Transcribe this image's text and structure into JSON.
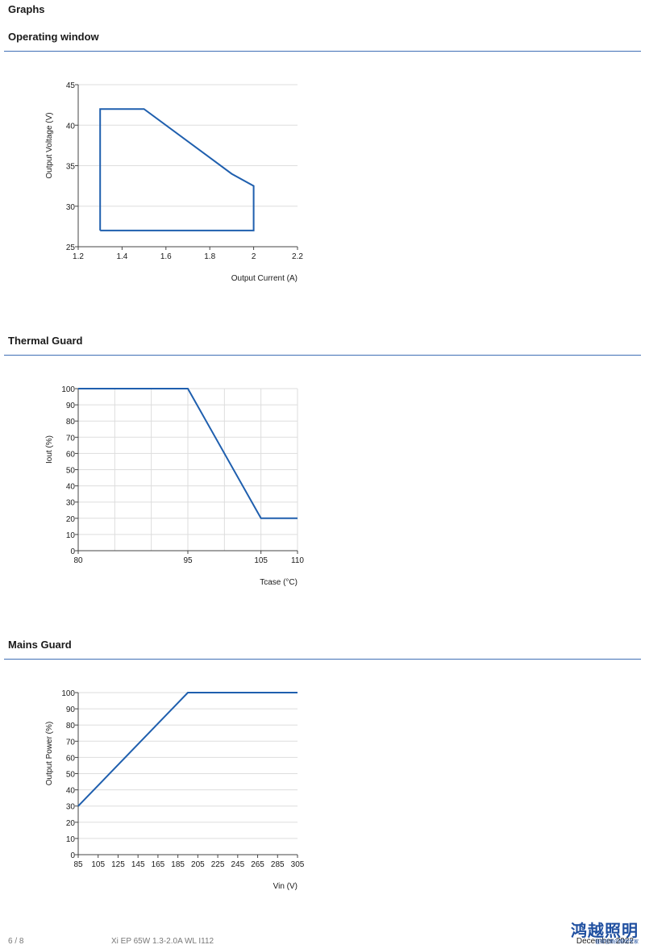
{
  "page": {
    "heading": "Graphs"
  },
  "sections": [
    {
      "title": "Operating window"
    },
    {
      "title": "Thermal Guard"
    },
    {
      "title": "Mains Guard"
    }
  ],
  "charts": [
    {
      "id": "operating-window",
      "type": "line",
      "xlabel": "Output Current (A)",
      "ylabel": "Output Voltage (V)",
      "xlim": [
        1.2,
        2.2
      ],
      "ylim": [
        25,
        45
      ],
      "xticks": [
        1.2,
        1.4,
        1.6,
        1.8,
        2,
        2.2
      ],
      "yticks": [
        25,
        30,
        35,
        40,
        45
      ],
      "grid": "horizontal",
      "series": [
        {
          "points": [
            [
              1.3,
              27
            ],
            [
              1.3,
              42
            ],
            [
              1.5,
              42
            ],
            [
              1.9,
              34
            ],
            [
              2.0,
              32.5
            ],
            [
              2.0,
              27
            ],
            [
              1.3,
              27
            ]
          ]
        }
      ]
    },
    {
      "id": "thermal-guard",
      "type": "line",
      "xlabel": "Tcase (°C)",
      "ylabel": "Iout (%)",
      "xlim": [
        80,
        110
      ],
      "ylim": [
        0,
        100
      ],
      "xticks": [
        80,
        95,
        105,
        110
      ],
      "yticks": [
        0,
        10,
        20,
        30,
        40,
        50,
        60,
        70,
        80,
        90,
        100
      ],
      "grid": "both",
      "vgrid": [
        80,
        85,
        90,
        95,
        100,
        105,
        110
      ],
      "series": [
        {
          "points": [
            [
              80,
              100
            ],
            [
              95,
              100
            ],
            [
              105,
              20
            ],
            [
              110,
              20
            ]
          ]
        }
      ]
    },
    {
      "id": "mains-guard",
      "type": "line",
      "xlabel": "Vin (V)",
      "ylabel": "Output Power (%)",
      "xlim": [
        85,
        305
      ],
      "ylim": [
        0,
        100
      ],
      "xticks": [
        85,
        105,
        125,
        145,
        165,
        185,
        205,
        225,
        245,
        265,
        285,
        305
      ],
      "yticks": [
        0,
        10,
        20,
        30,
        40,
        50,
        60,
        70,
        80,
        90,
        100
      ],
      "grid": "horizontal",
      "series": [
        {
          "points": [
            [
              85,
              30
            ],
            [
              195,
              100
            ],
            [
              305,
              100
            ]
          ]
        }
      ]
    }
  ],
  "chart_data": [
    {
      "type": "line",
      "xlabel": "Output Current (A)",
      "ylabel": "Output Voltage (V)",
      "xlim": [
        1.2,
        2.2
      ],
      "ylim": [
        25,
        45
      ],
      "x": [
        1.3,
        1.3,
        1.5,
        1.9,
        2.0,
        2.0,
        1.3
      ],
      "y": [
        27,
        42,
        42,
        34,
        32.5,
        27,
        27
      ]
    },
    {
      "type": "line",
      "xlabel": "Tcase (°C)",
      "ylabel": "Iout (%)",
      "xlim": [
        80,
        110
      ],
      "ylim": [
        0,
        100
      ],
      "x": [
        80,
        95,
        105,
        110
      ],
      "y": [
        100,
        100,
        20,
        20
      ]
    },
    {
      "type": "line",
      "xlabel": "Vin (V)",
      "ylabel": "Output Power (%)",
      "xlim": [
        85,
        305
      ],
      "ylim": [
        0,
        100
      ],
      "x": [
        85,
        195,
        305
      ],
      "y": [
        30,
        100,
        100
      ]
    }
  ],
  "footer": {
    "page_number": "6 / 8",
    "product": "Xi EP 65W 1.3-2.0A WL I112",
    "date": "December 2022",
    "logo_text": "鸿越照明",
    "logo_subtext": "值得信赖的照明专家"
  },
  "colors": {
    "series_line": "#1f5fae",
    "section_rule": "#3f6fb5",
    "grid": "#dddddd",
    "axis": "#444444"
  }
}
